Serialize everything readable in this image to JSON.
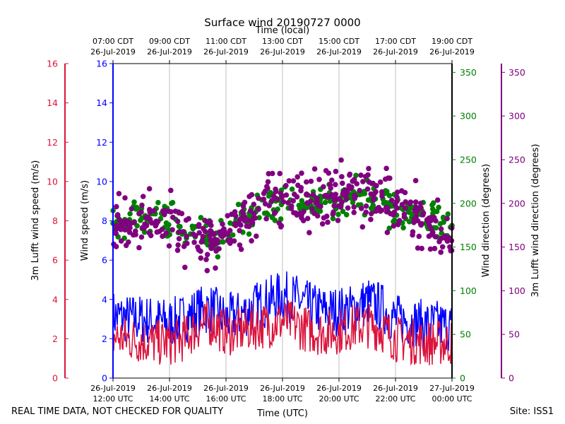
{
  "colors": {
    "blue": "#0000ff",
    "red": "#dc143c",
    "green": "#008000",
    "purple": "#800080",
    "grid": "#b0b0b0"
  },
  "chart_data": {
    "type": "line",
    "title": "Surface wind 20190727 0000",
    "top_axis_label": "Time (local)",
    "xlabel": "Time (UTC)",
    "ylabel_left_outer": "3m Lufft wind speed (m/s)",
    "ylabel_left_inner": "Wind speed (m/s)",
    "ylabel_right_inner": "Wind direction (degrees)",
    "ylabel_right_outer": "3m Lufft wind direction (degrees)",
    "speed_ylim": [
      0,
      16
    ],
    "direction_ylim": [
      0,
      360
    ],
    "xlim_hours": [
      12,
      24
    ],
    "speed_ticks": [
      "0",
      "2",
      "4",
      "6",
      "8",
      "10",
      "12",
      "14",
      "16"
    ],
    "direction_ticks": [
      "0",
      "50",
      "100",
      "150",
      "200",
      "250",
      "300",
      "350"
    ],
    "bottom_ticks": [
      {
        "hour": 12,
        "line1": "26-Jul-2019",
        "line2": "12:00 UTC"
      },
      {
        "hour": 14,
        "line1": "26-Jul-2019",
        "line2": "14:00 UTC"
      },
      {
        "hour": 16,
        "line1": "26-Jul-2019",
        "line2": "16:00 UTC"
      },
      {
        "hour": 18,
        "line1": "26-Jul-2019",
        "line2": "18:00 UTC"
      },
      {
        "hour": 20,
        "line1": "26-Jul-2019",
        "line2": "20:00 UTC"
      },
      {
        "hour": 22,
        "line1": "26-Jul-2019",
        "line2": "22:00 UTC"
      },
      {
        "hour": 24,
        "line1": "27-Jul-2019",
        "line2": "00:00 UTC"
      }
    ],
    "top_ticks": [
      {
        "hour": 12,
        "line1": "07:00 CDT",
        "line2": "26-Jul-2019"
      },
      {
        "hour": 14,
        "line1": "09:00 CDT",
        "line2": "26-Jul-2019"
      },
      {
        "hour": 16,
        "line1": "11:00 CDT",
        "line2": "26-Jul-2019"
      },
      {
        "hour": 18,
        "line1": "13:00 CDT",
        "line2": "26-Jul-2019"
      },
      {
        "hour": 20,
        "line1": "15:00 CDT",
        "line2": "26-Jul-2019"
      },
      {
        "hour": 22,
        "line1": "17:00 CDT",
        "line2": "26-Jul-2019"
      },
      {
        "hour": 24,
        "line1": "19:00 CDT",
        "line2": "26-Jul-2019"
      }
    ],
    "series": [
      {
        "name": "Wind speed (m/s)",
        "kind": "line",
        "axis": "speed",
        "color": "#0000ff",
        "x": [
          12.0,
          12.5,
          13.0,
          13.5,
          14.0,
          14.5,
          15.0,
          15.5,
          16.0,
          16.5,
          17.0,
          17.5,
          18.0,
          18.5,
          19.0,
          19.5,
          20.0,
          20.5,
          21.0,
          21.5,
          22.0,
          22.5,
          23.0,
          23.5,
          24.0
        ],
        "values": [
          3.2,
          3.0,
          3.0,
          2.9,
          2.8,
          3.0,
          3.4,
          3.5,
          3.0,
          3.2,
          3.6,
          3.9,
          4.2,
          4.0,
          3.6,
          3.4,
          3.4,
          3.5,
          3.9,
          3.6,
          3.0,
          2.9,
          2.7,
          2.7,
          2.6
        ]
      },
      {
        "name": "3m Lufft wind speed (m/s)",
        "kind": "line",
        "axis": "speed",
        "color": "#dc143c",
        "x": [
          12.0,
          12.5,
          13.0,
          13.5,
          14.0,
          14.5,
          15.0,
          15.5,
          16.0,
          16.5,
          17.0,
          17.5,
          18.0,
          18.5,
          19.0,
          19.5,
          20.0,
          20.5,
          21.0,
          21.5,
          22.0,
          22.5,
          23.0,
          23.5,
          24.0
        ],
        "values": [
          2.1,
          2.0,
          1.9,
          1.8,
          1.8,
          2.0,
          2.6,
          2.8,
          2.3,
          2.4,
          2.6,
          2.7,
          2.9,
          2.7,
          2.4,
          2.3,
          2.4,
          2.6,
          2.7,
          2.5,
          2.0,
          1.9,
          1.8,
          1.8,
          1.8
        ]
      },
      {
        "name": "Wind direction (degrees)",
        "kind": "scatter",
        "axis": "direction",
        "color": "#008000",
        "x": [
          12.0,
          12.5,
          13.0,
          13.5,
          14.0,
          14.5,
          15.0,
          15.5,
          16.0,
          16.5,
          17.0,
          17.5,
          18.0,
          18.5,
          19.0,
          19.5,
          20.0,
          20.5,
          21.0,
          21.5,
          22.0,
          22.5,
          23.0,
          23.5,
          24.0
        ],
        "values": [
          178,
          180,
          182,
          185,
          182,
          172,
          166,
          162,
          168,
          180,
          190,
          194,
          197,
          199,
          198,
          202,
          205,
          207,
          205,
          200,
          195,
          190,
          182,
          176,
          172
        ]
      },
      {
        "name": "3m Lufft wind direction (degrees)",
        "kind": "scatter",
        "axis": "direction",
        "color": "#800080",
        "x": [
          12.0,
          12.5,
          13.0,
          13.5,
          14.0,
          14.5,
          15.0,
          15.5,
          16.0,
          16.5,
          17.0,
          17.5,
          18.0,
          18.5,
          19.0,
          19.5,
          20.0,
          20.5,
          21.0,
          21.5,
          22.0,
          22.5,
          23.0,
          23.5,
          24.0
        ],
        "values": [
          172,
          175,
          178,
          181,
          178,
          165,
          157,
          155,
          163,
          178,
          193,
          199,
          202,
          206,
          205,
          208,
          212,
          214,
          210,
          204,
          197,
          190,
          180,
          172,
          166
        ]
      }
    ]
  },
  "footer": {
    "left": "REAL TIME DATA, NOT CHECKED FOR QUALITY",
    "right": "Site: ISS1"
  }
}
